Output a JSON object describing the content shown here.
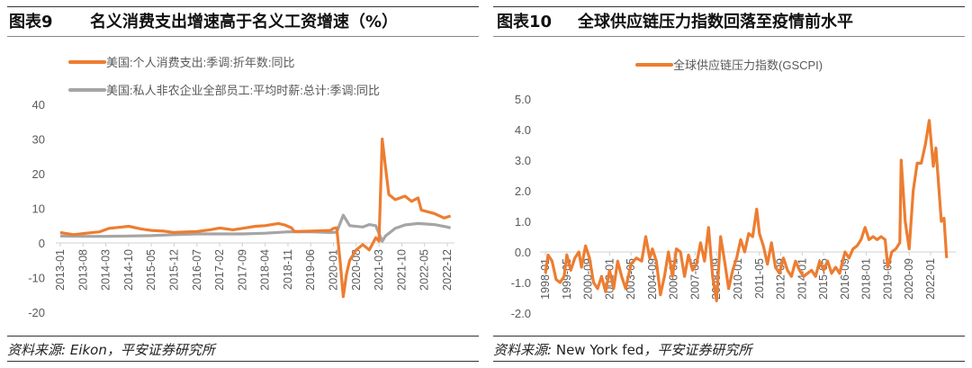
{
  "charts": [
    {
      "fig_label": "图表9",
      "title": "名义消费支出增速高于名义工资增速（%）",
      "source_prefix": "资料来源:",
      "source_en": "Eikon",
      "source_suffix": "，平安证券研究所"
    },
    {
      "fig_label": "图表10",
      "title": "全球供应链压力指数回落至疫情前水平",
      "source_prefix": "资料来源:",
      "source_en": "New York fed",
      "source_suffix": "，平安证券研究所"
    }
  ],
  "chart_data": [
    {
      "type": "line",
      "ylim": [
        -20,
        40
      ],
      "yticks": [
        "40",
        "30",
        "20",
        "10",
        "0",
        "-10",
        "-20"
      ],
      "ytick_values": [
        40,
        30,
        20,
        10,
        0,
        -10,
        -20
      ],
      "xticks": [
        "2013-01",
        "2013-08",
        "2014-03",
        "2014-10",
        "2015-05",
        "2015-12",
        "2016-07",
        "2017-02",
        "2017-09",
        "2018-04",
        "2018-11",
        "2019-06",
        "2020-01",
        "2020-08",
        "2021-03",
        "2021-10",
        "2022-05",
        "2022-12"
      ],
      "legend_position": "top",
      "series": [
        {
          "name": "美国:个人消费支出:季调:折年数:同比",
          "color": "#ED7D31",
          "points": [
            [
              "2013-01",
              3.0
            ],
            [
              "2013-05",
              2.4
            ],
            [
              "2013-09",
              2.8
            ],
            [
              "2014-01",
              3.2
            ],
            [
              "2014-04",
              4.2
            ],
            [
              "2014-08",
              4.6
            ],
            [
              "2014-10",
              4.8
            ],
            [
              "2015-02",
              4.0
            ],
            [
              "2015-05",
              3.6
            ],
            [
              "2015-09",
              3.4
            ],
            [
              "2015-12",
              3.0
            ],
            [
              "2016-04",
              3.2
            ],
            [
              "2016-07",
              3.3
            ],
            [
              "2016-11",
              3.8
            ],
            [
              "2017-02",
              4.3
            ],
            [
              "2017-06",
              3.8
            ],
            [
              "2017-09",
              4.2
            ],
            [
              "2018-01",
              4.8
            ],
            [
              "2018-04",
              5.0
            ],
            [
              "2018-08",
              5.6
            ],
            [
              "2018-10",
              5.2
            ],
            [
              "2018-12",
              4.4
            ],
            [
              "2019-01",
              3.3
            ],
            [
              "2019-06",
              3.4
            ],
            [
              "2019-12",
              3.6
            ],
            [
              "2020-01",
              4.2
            ],
            [
              "2020-02",
              4.4
            ],
            [
              "2020-03",
              -5.0
            ],
            [
              "2020-04",
              -15.5
            ],
            [
              "2020-05",
              -9.0
            ],
            [
              "2020-06",
              -5.0
            ],
            [
              "2020-08",
              -2.0
            ],
            [
              "2020-10",
              -0.5
            ],
            [
              "2020-12",
              -2.0
            ],
            [
              "2021-02",
              1.5
            ],
            [
              "2021-03",
              0.5
            ],
            [
              "2021-04",
              30.0
            ],
            [
              "2021-05",
              22.0
            ],
            [
              "2021-06",
              14.0
            ],
            [
              "2021-08",
              12.5
            ],
            [
              "2021-11",
              13.5
            ],
            [
              "2022-01",
              12.0
            ],
            [
              "2022-03",
              13.0
            ],
            [
              "2022-04",
              9.5
            ],
            [
              "2022-08",
              8.5
            ],
            [
              "2022-11",
              7.2
            ],
            [
              "2023-01",
              7.8
            ]
          ]
        },
        {
          "name": "美国:私人非农企业全部员工:平均时薪:总计:季调:同比",
          "color": "#A5A5A5",
          "points": [
            [
              "2013-01",
              2.0
            ],
            [
              "2013-08",
              1.9
            ],
            [
              "2014-03",
              1.9
            ],
            [
              "2014-10",
              2.0
            ],
            [
              "2015-05",
              2.1
            ],
            [
              "2015-12",
              2.4
            ],
            [
              "2016-07",
              2.6
            ],
            [
              "2017-02",
              2.6
            ],
            [
              "2017-09",
              2.6
            ],
            [
              "2018-04",
              2.8
            ],
            [
              "2018-11",
              3.2
            ],
            [
              "2019-06",
              3.2
            ],
            [
              "2019-12",
              3.0
            ],
            [
              "2020-02",
              3.1
            ],
            [
              "2020-04",
              8.0
            ],
            [
              "2020-06",
              5.0
            ],
            [
              "2020-10",
              4.6
            ],
            [
              "2020-12",
              5.3
            ],
            [
              "2021-02",
              5.0
            ],
            [
              "2021-04",
              0.5
            ],
            [
              "2021-05",
              2.0
            ],
            [
              "2021-08",
              4.2
            ],
            [
              "2021-11",
              5.2
            ],
            [
              "2022-03",
              5.6
            ],
            [
              "2022-08",
              5.3
            ],
            [
              "2022-12",
              4.6
            ],
            [
              "2023-01",
              4.3
            ]
          ]
        }
      ]
    },
    {
      "type": "line",
      "ylim": [
        -2.0,
        5.0
      ],
      "yticks": [
        "5.0",
        "4.0",
        "3.0",
        "2.0",
        "1.0",
        "0.0",
        "-1.0",
        "-2.0"
      ],
      "ytick_values": [
        5,
        4,
        3,
        2,
        1,
        0,
        -1,
        -2
      ],
      "xticks": [
        "1998-01",
        "1999-05",
        "2000-09",
        "2002-01",
        "2003-05",
        "2004-09",
        "2006-01",
        "2007-05",
        "2008-09",
        "2010-01",
        "2011-05",
        "2012-09",
        "2014-01",
        "2015-05",
        "2016-09",
        "2018-01",
        "2019-05",
        "2020-09",
        "2022-01"
      ],
      "legend_position": "top",
      "series": [
        {
          "name": "全球供应链压力指数(GSCPI)",
          "color": "#ED7D31",
          "points": [
            [
              "1998-01",
              -0.7
            ],
            [
              "1998-03",
              -0.1
            ],
            [
              "1998-06",
              -0.3
            ],
            [
              "1998-09",
              -0.9
            ],
            [
              "1998-12",
              -1.0
            ],
            [
              "1999-03",
              -0.8
            ],
            [
              "1999-05",
              -0.1
            ],
            [
              "1999-08",
              -0.6
            ],
            [
              "1999-11",
              -0.2
            ],
            [
              "2000-02",
              0.0
            ],
            [
              "2000-04",
              -0.5
            ],
            [
              "2000-07",
              0.2
            ],
            [
              "2000-10",
              -0.2
            ],
            [
              "2001-01",
              -1.0
            ],
            [
              "2001-04",
              -1.2
            ],
            [
              "2001-07",
              -0.8
            ],
            [
              "2001-10",
              -1.3
            ],
            [
              "2002-01",
              -0.6
            ],
            [
              "2002-04",
              -1.2
            ],
            [
              "2002-07",
              -0.3
            ],
            [
              "2002-10",
              -0.8
            ],
            [
              "2003-01",
              -1.2
            ],
            [
              "2003-05",
              -0.4
            ],
            [
              "2003-09",
              -0.2
            ],
            [
              "2004-01",
              -0.3
            ],
            [
              "2004-04",
              0.5
            ],
            [
              "2004-07",
              -0.2
            ],
            [
              "2004-09",
              0.1
            ],
            [
              "2004-12",
              -0.3
            ],
            [
              "2005-03",
              -1.4
            ],
            [
              "2005-06",
              -0.8
            ],
            [
              "2005-09",
              0.0
            ],
            [
              "2005-12",
              -0.8
            ],
            [
              "2006-03",
              0.1
            ],
            [
              "2006-06",
              0.0
            ],
            [
              "2006-09",
              -0.8
            ],
            [
              "2006-12",
              -0.1
            ],
            [
              "2007-03",
              -0.6
            ],
            [
              "2007-06",
              -0.4
            ],
            [
              "2007-09",
              0.3
            ],
            [
              "2007-12",
              -0.3
            ],
            [
              "2008-03",
              0.8
            ],
            [
              "2008-06",
              -0.8
            ],
            [
              "2008-09",
              -1.6
            ],
            [
              "2008-12",
              0.5
            ],
            [
              "2009-03",
              -0.3
            ],
            [
              "2009-06",
              -1.2
            ],
            [
              "2009-09",
              -0.6
            ],
            [
              "2009-12",
              -0.2
            ],
            [
              "2010-03",
              0.4
            ],
            [
              "2010-06",
              0.0
            ],
            [
              "2010-09",
              0.6
            ],
            [
              "2010-12",
              0.5
            ],
            [
              "2011-03",
              1.4
            ],
            [
              "2011-05",
              0.6
            ],
            [
              "2011-08",
              0.2
            ],
            [
              "2011-11",
              -0.4
            ],
            [
              "2012-02",
              0.3
            ],
            [
              "2012-05",
              -0.5
            ],
            [
              "2012-08",
              -0.7
            ],
            [
              "2012-11",
              -0.2
            ],
            [
              "2013-02",
              -0.6
            ],
            [
              "2013-05",
              -0.8
            ],
            [
              "2013-08",
              -0.3
            ],
            [
              "2013-11",
              -0.6
            ],
            [
              "2014-02",
              -0.8
            ],
            [
              "2014-05",
              -0.7
            ],
            [
              "2014-08",
              -0.6
            ],
            [
              "2014-11",
              -0.8
            ],
            [
              "2015-02",
              -0.3
            ],
            [
              "2015-05",
              -0.6
            ],
            [
              "2015-08",
              -0.3
            ],
            [
              "2015-11",
              -0.7
            ],
            [
              "2016-02",
              -0.5
            ],
            [
              "2016-05",
              -0.7
            ],
            [
              "2016-09",
              0.0
            ],
            [
              "2016-12",
              -0.2
            ],
            [
              "2017-03",
              0.1
            ],
            [
              "2017-06",
              0.2
            ],
            [
              "2017-09",
              0.4
            ],
            [
              "2017-12",
              0.8
            ],
            [
              "2018-03",
              0.4
            ],
            [
              "2018-06",
              0.5
            ],
            [
              "2018-09",
              0.4
            ],
            [
              "2018-12",
              0.5
            ],
            [
              "2019-03",
              0.4
            ],
            [
              "2019-05",
              -0.5
            ],
            [
              "2019-08",
              0.0
            ],
            [
              "2019-11",
              0.1
            ],
            [
              "2020-02",
              0.3
            ],
            [
              "2020-03",
              3.0
            ],
            [
              "2020-06",
              1.0
            ],
            [
              "2020-09",
              0.1
            ],
            [
              "2020-12",
              2.0
            ],
            [
              "2021-03",
              2.9
            ],
            [
              "2021-06",
              2.9
            ],
            [
              "2021-09",
              3.5
            ],
            [
              "2021-12",
              4.3
            ],
            [
              "2022-03",
              2.8
            ],
            [
              "2022-05",
              3.4
            ],
            [
              "2022-08",
              1.6
            ],
            [
              "2022-09",
              1.0
            ],
            [
              "2022-11",
              1.1
            ],
            [
              "2023-01",
              -0.2
            ]
          ]
        }
      ]
    }
  ]
}
